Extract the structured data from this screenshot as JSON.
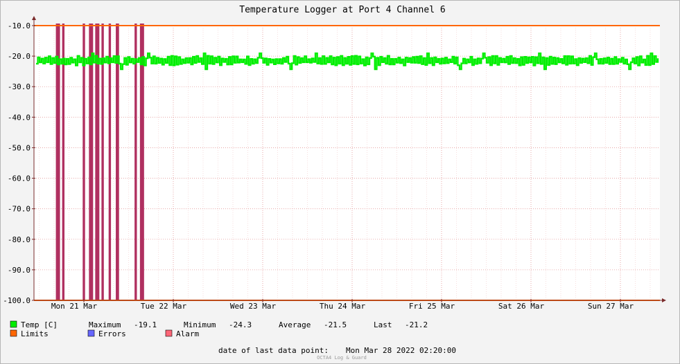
{
  "chart_data": {
    "type": "line",
    "title": "Temperature Logger at Port 4 Channel 6",
    "ylim": [
      -100,
      -10
    ],
    "y_ticks": [
      "-10.0",
      "-20.0",
      "-30.0",
      "-40.0",
      "-50.0",
      "-60.0",
      "-70.0",
      "-80.0",
      "-90.0",
      "-100.0"
    ],
    "x_tick_labels": [
      "Mon 21 Mar",
      "Tue 22 Mar",
      "Wed 23 Mar",
      "Thu 24 Mar",
      "Fri 25 Mar",
      "Sat 26 Mar",
      "Sun 27 Mar"
    ],
    "x_range_days": [
      20.55,
      27.35
    ],
    "grid": true,
    "series": [
      {
        "name": "Temp [C]",
        "color": "#00ee00",
        "value_range": [
          -24.3,
          -19.1
        ],
        "mean": -21.5
      },
      {
        "name": "Limits",
        "color": "#ff6600",
        "upper": -10,
        "lower": -100
      },
      {
        "name": "Errors",
        "color": "#6666ff"
      },
      {
        "name": "Alarm",
        "color": "#ff6677"
      }
    ],
    "alarm_marks_days": [
      20.7,
      20.72,
      20.77,
      21.0,
      21.07,
      21.09,
      21.14,
      21.16,
      21.21,
      21.29,
      21.37,
      21.38,
      21.58,
      21.64,
      21.66
    ],
    "alarm_bar_color": "#b03060"
  },
  "legend": {
    "temp_label": "Temp [C]",
    "limits_label": "Limits",
    "errors_label": "Errors",
    "alarm_label": "Alarm",
    "stats": {
      "max_label": "Maximum",
      "max_value": "-19.1",
      "min_label": "Minimum",
      "min_value": "-24.3",
      "avg_label": "Average",
      "avg_value": "-21.5",
      "last_label": "Last",
      "last_value": "-21.2"
    }
  },
  "last_data_point": {
    "label": "date of last data point:",
    "value": "Mon Mar 28 2022 02:20:00"
  },
  "footer": "OCTA4 Log & Guard"
}
